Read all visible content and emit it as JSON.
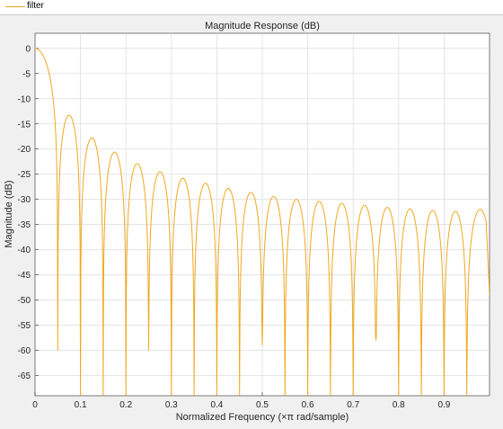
{
  "legend": {
    "label": "filter",
    "color": "#f0a81e"
  },
  "chart_data": {
    "type": "line",
    "title": "Magnitude Response (dB)",
    "xlabel": "Normalized Frequency (×π rad/sample)",
    "ylabel": "Magnitude (dB)",
    "xlim": [
      0,
      1
    ],
    "ylim": [
      -69,
      3
    ],
    "xticks": [
      0,
      0.1,
      0.2,
      0.3,
      0.4,
      0.5,
      0.6,
      0.7,
      0.8,
      0.9
    ],
    "xtick_labels": [
      "0",
      "0.1",
      "0.2",
      "0.3",
      "0.4",
      "0.5",
      "0.6",
      "0.7",
      "0.8",
      "0.9"
    ],
    "yticks": [
      0,
      -5,
      -10,
      -15,
      -20,
      -25,
      -30,
      -35,
      -40,
      -45,
      -50,
      -55,
      -60,
      -65
    ],
    "ytick_labels": [
      "0",
      "-5",
      "-10",
      "-15",
      "-20",
      "-25",
      "-30",
      "-35",
      "-40",
      "-45",
      "-50",
      "-55",
      "-60",
      "-65"
    ],
    "grid": true,
    "series": [
      {
        "name": "filter",
        "color": "#f0a81e",
        "description_points": {
          "nulls_x": [
            0.05,
            0.1,
            0.15,
            0.2,
            0.25,
            0.3,
            0.35,
            0.4,
            0.45,
            0.5,
            0.55,
            0.6,
            0.65,
            0.7,
            0.75,
            0.8,
            0.85,
            0.9,
            0.95
          ],
          "null_depth_db": [
            -60,
            -69,
            -69,
            -69,
            -60,
            -69,
            -69,
            -69,
            -69,
            -59,
            -69,
            -69,
            -69,
            -69,
            -58,
            -69,
            -69,
            -69,
            -69
          ],
          "lobe_peaks_db": [
            0,
            -13.3,
            -17.8,
            -20.6,
            -22.9,
            -24.5,
            -25.8,
            -26.8,
            -27.8,
            -28.6,
            -29.4,
            -30.0,
            -30.4,
            -30.8,
            -31.2,
            -31.6,
            -31.9,
            -32.2,
            -32.4,
            -32.0
          ],
          "end_value_db": -49
        }
      }
    ]
  }
}
